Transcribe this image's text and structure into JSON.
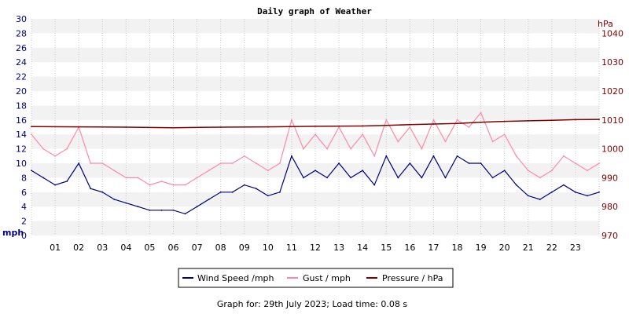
{
  "chart_data": {
    "type": "line",
    "title": "Daily graph of Weather",
    "x_tick_labels": [
      "01",
      "02",
      "03",
      "04",
      "05",
      "06",
      "07",
      "08",
      "09",
      "10",
      "11",
      "12",
      "13",
      "14",
      "15",
      "16",
      "17",
      "18",
      "19",
      "20",
      "21",
      "22",
      "23"
    ],
    "x_range_hours": [
      0,
      24
    ],
    "left_axis": {
      "unit": "mph",
      "ylim": [
        0,
        30
      ],
      "ticks": [
        0,
        2,
        4,
        6,
        8,
        10,
        12,
        14,
        16,
        18,
        20,
        22,
        24,
        26,
        28,
        30
      ]
    },
    "right_axis": {
      "unit": "hPa",
      "ylim": [
        970,
        1045
      ],
      "ticks": [
        970,
        980,
        990,
        1000,
        1010,
        1020,
        1030,
        1040
      ]
    },
    "grid": "horizontal-bands",
    "legend_placement": "bottom-center",
    "series": [
      {
        "name": "Wind Speed /mph",
        "axis": "left",
        "color": "#000080",
        "x": [
          0,
          0.5,
          1,
          1.5,
          2,
          2.5,
          3,
          3.5,
          4,
          4.5,
          5,
          5.5,
          6,
          6.5,
          7,
          7.5,
          8,
          8.5,
          9,
          9.5,
          10,
          10.5,
          11,
          11.5,
          12,
          12.5,
          13,
          13.5,
          14,
          14.5,
          15,
          15.5,
          16,
          16.5,
          17,
          17.5,
          18,
          18.5,
          19,
          19.5,
          20,
          20.5,
          21,
          21.5,
          22,
          22.5,
          23,
          23.5,
          24
        ],
        "values": [
          9,
          8,
          7,
          7.5,
          10,
          6.5,
          6,
          5,
          4.5,
          4,
          3.5,
          3.5,
          3.5,
          3,
          4,
          5,
          6,
          6,
          7,
          6.5,
          5.5,
          6,
          11,
          8,
          9,
          8,
          10,
          8,
          9,
          7,
          11,
          8,
          10,
          8,
          11,
          8,
          11,
          10,
          10,
          8,
          9,
          7,
          5.5,
          5,
          6,
          7,
          6,
          5.5,
          6
        ]
      },
      {
        "name": "Gust / mph",
        "axis": "left",
        "color": "#ff88aa",
        "x": [
          0,
          0.5,
          1,
          1.5,
          2,
          2.5,
          3,
          3.5,
          4,
          4.5,
          5,
          5.5,
          6,
          6.5,
          7,
          7.5,
          8,
          8.5,
          9,
          9.5,
          10,
          10.5,
          11,
          11.5,
          12,
          12.5,
          13,
          13.5,
          14,
          14.5,
          15,
          15.5,
          16,
          16.5,
          17,
          17.5,
          18,
          18.5,
          19,
          19.5,
          20,
          20.5,
          21,
          21.5,
          22,
          22.5,
          23,
          23.5,
          24
        ],
        "values": [
          14,
          12,
          11,
          12,
          15,
          10,
          10,
          9,
          8,
          8,
          7,
          7.5,
          7,
          7,
          8,
          9,
          10,
          10,
          11,
          10,
          9,
          10,
          16,
          12,
          14,
          12,
          15,
          12,
          14,
          11,
          16,
          13,
          15,
          12,
          16,
          13,
          16,
          15,
          17,
          13,
          14,
          11,
          9,
          8,
          9,
          11,
          10,
          9,
          10
        ]
      },
      {
        "name": "Pressure / hPa",
        "axis": "right",
        "color": "#800000",
        "x": [
          0,
          2,
          4,
          6,
          8,
          10,
          12,
          14,
          15,
          16,
          17,
          18,
          19,
          20,
          21,
          22,
          23,
          24
        ],
        "values": [
          1007.7,
          1007.6,
          1007.5,
          1007.3,
          1007.5,
          1007.6,
          1007.8,
          1007.9,
          1008.1,
          1008.4,
          1008.6,
          1008.8,
          1009.2,
          1009.5,
          1009.7,
          1009.9,
          1010.1,
          1010.2
        ]
      }
    ]
  },
  "footer": {
    "text": "Graph for: 29th July 2023; Load time: 0.08 s"
  }
}
